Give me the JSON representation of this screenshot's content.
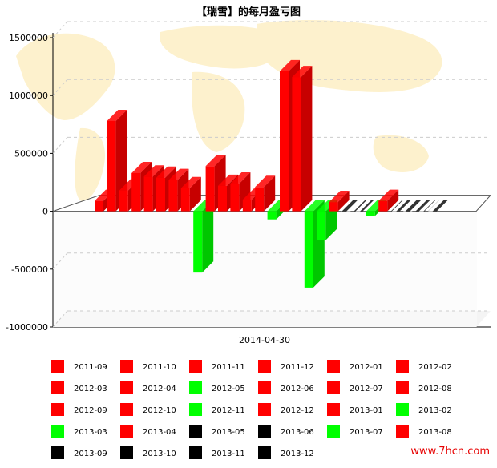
{
  "chart_data": {
    "type": "bar",
    "title": "【瑞雪】的每月盈亏图",
    "xlabel": "",
    "ylabel": "",
    "category": "2014-04-30",
    "ylim": [
      -1000000,
      1500000
    ],
    "yticks": [
      1500000,
      1000000,
      500000,
      0,
      -500000,
      -1000000
    ],
    "yticklabels": [
      "1500000",
      "1000000",
      "500000",
      "0",
      "-500000",
      "-1000000"
    ],
    "grid": true,
    "legend_position": "bottom",
    "series": [
      {
        "name": "2011-09",
        "value": 90000,
        "color": "#ff0000"
      },
      {
        "name": "2011-10",
        "value": 780000,
        "color": "#ff0000"
      },
      {
        "name": "2011-11",
        "value": 180000,
        "color": "#ff0000"
      },
      {
        "name": "2011-12",
        "value": 330000,
        "color": "#ff0000"
      },
      {
        "name": "2012-01",
        "value": 300000,
        "color": "#ff0000"
      },
      {
        "name": "2012-02",
        "value": 290000,
        "color": "#ff0000"
      },
      {
        "name": "2012-03",
        "value": 270000,
        "color": "#ff0000"
      },
      {
        "name": "2012-04",
        "value": 200000,
        "color": "#ff0000"
      },
      {
        "name": "2012-05",
        "value": -530000,
        "color": "#00ff00"
      },
      {
        "name": "2012-06",
        "value": 390000,
        "color": "#ff0000"
      },
      {
        "name": "2012-07",
        "value": 220000,
        "color": "#ff0000"
      },
      {
        "name": "2012-08",
        "value": 240000,
        "color": "#ff0000"
      },
      {
        "name": "2012-09",
        "value": 100000,
        "color": "#ff0000"
      },
      {
        "name": "2012-10",
        "value": 210000,
        "color": "#ff0000"
      },
      {
        "name": "2012-11",
        "value": -70000,
        "color": "#00ff00"
      },
      {
        "name": "2012-12",
        "value": 1210000,
        "color": "#ff0000"
      },
      {
        "name": "2013-01",
        "value": 1160000,
        "color": "#ff0000"
      },
      {
        "name": "2013-02",
        "value": -660000,
        "color": "#00ff00"
      },
      {
        "name": "2013-03",
        "value": -250000,
        "color": "#00ff00"
      },
      {
        "name": "2013-04",
        "value": 80000,
        "color": "#ff0000"
      },
      {
        "name": "2013-05",
        "value": 0,
        "color": "#000000"
      },
      {
        "name": "2013-06",
        "value": 0,
        "color": "#000000"
      },
      {
        "name": "2013-07",
        "value": -40000,
        "color": "#00ff00"
      },
      {
        "name": "2013-08",
        "value": 90000,
        "color": "#ff0000"
      },
      {
        "name": "2013-09",
        "value": 0,
        "color": "#000000"
      },
      {
        "name": "2013-10",
        "value": 0,
        "color": "#000000"
      },
      {
        "name": "2013-11",
        "value": 0,
        "color": "#000000"
      },
      {
        "name": "2013-12",
        "value": 0,
        "color": "#000000"
      }
    ]
  },
  "watermark": "www.7hcn.com"
}
